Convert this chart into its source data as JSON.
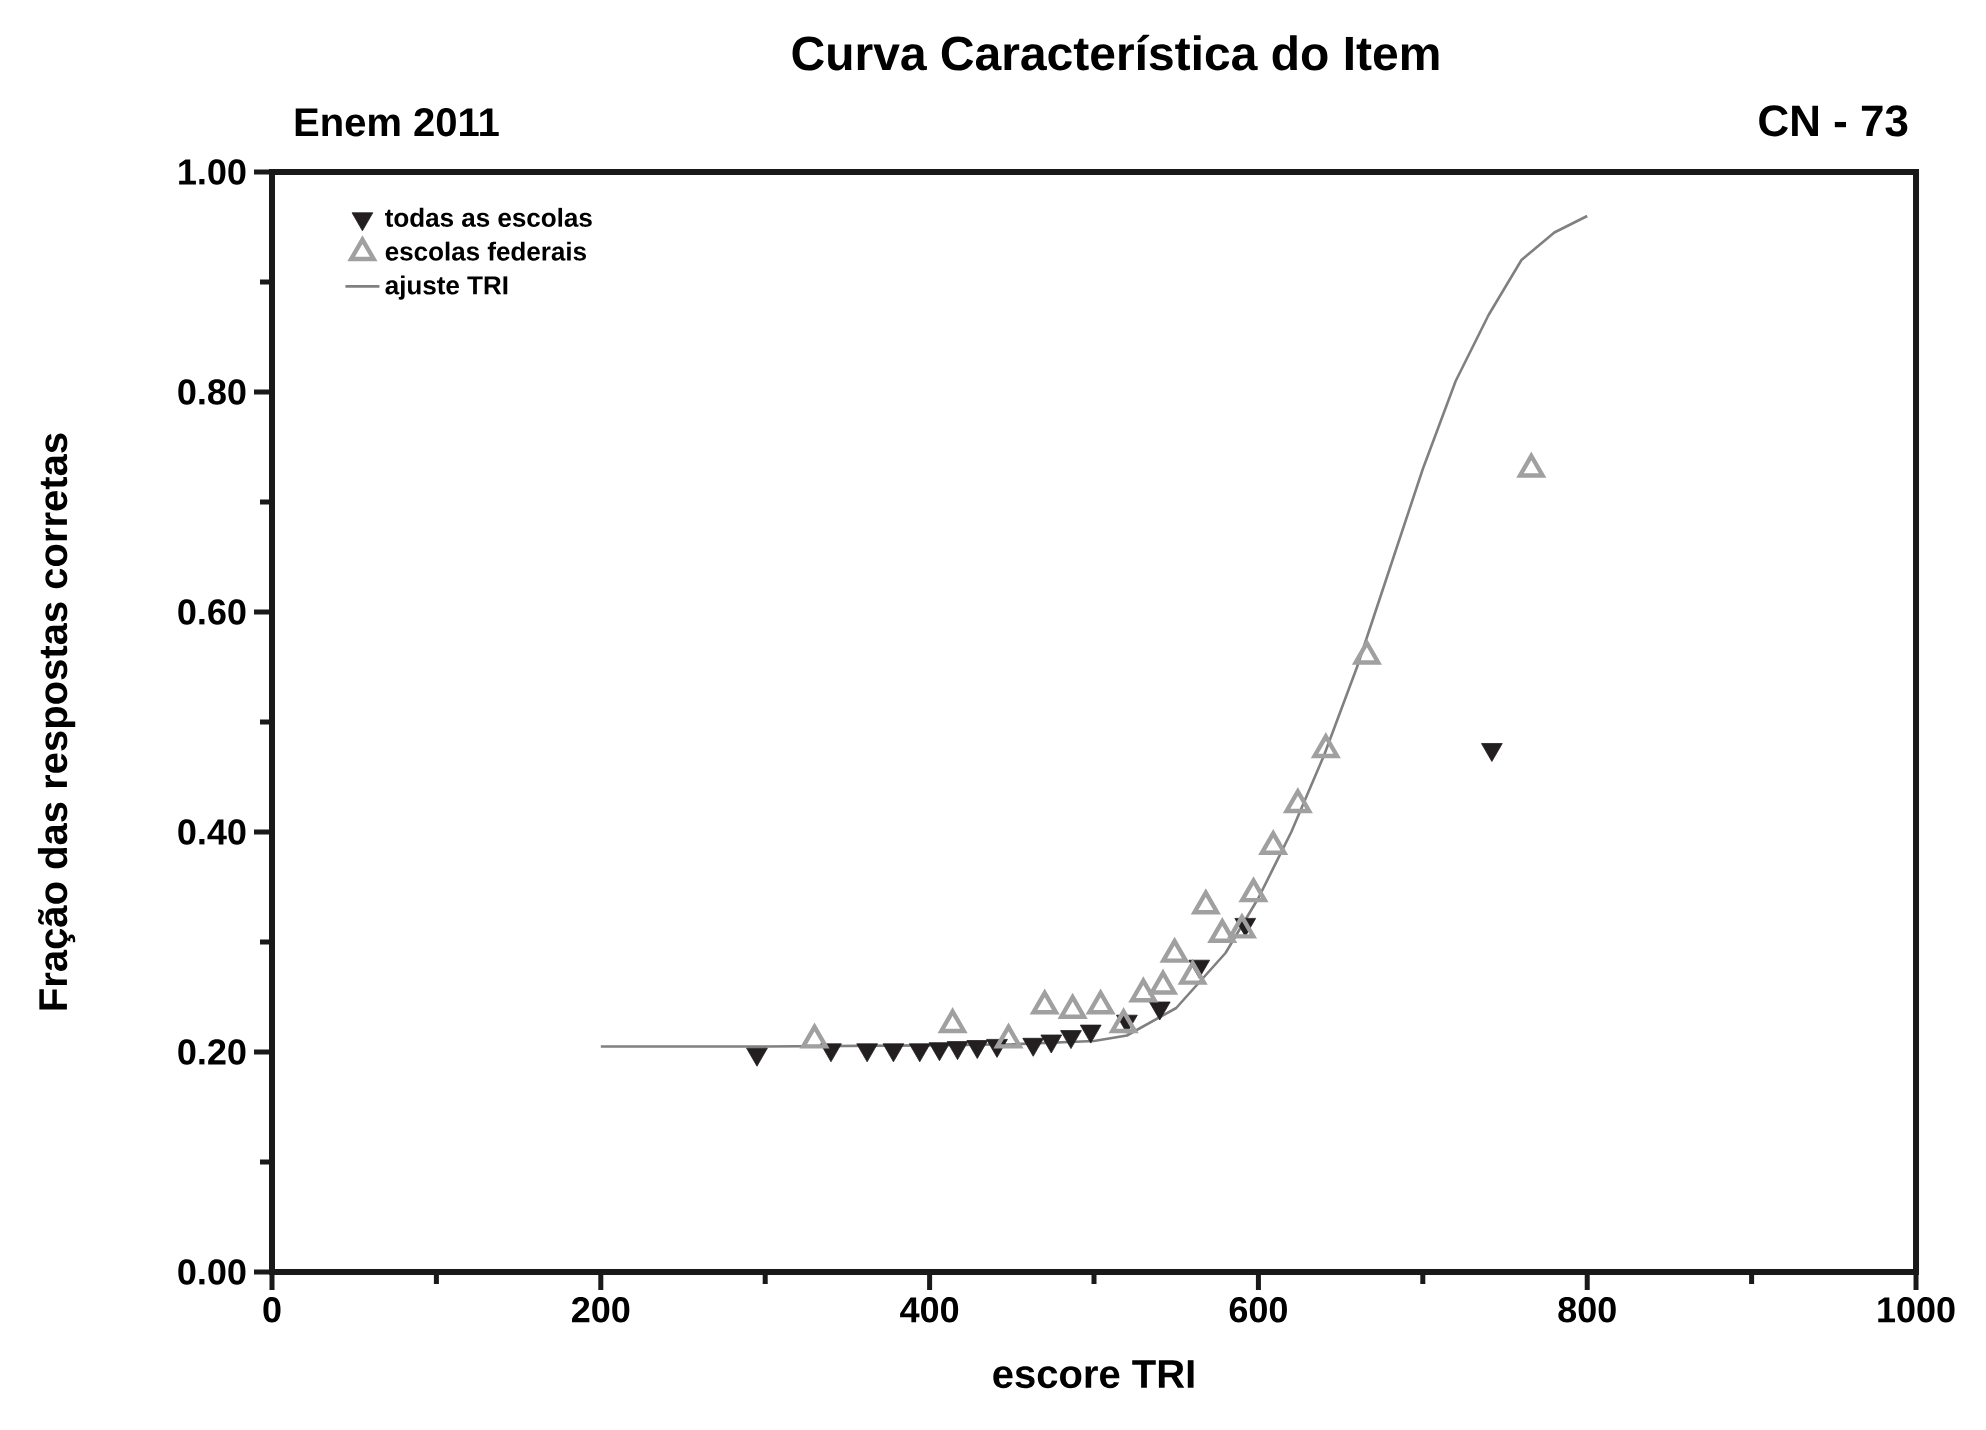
{
  "chart_data": {
    "type": "scatter",
    "title": "Curva Característica do Item",
    "annotations": [
      "Enem 2011",
      "CN - 73"
    ],
    "xlabel": "escore TRI",
    "ylabel": "Fração das respostas corretas",
    "xlim": [
      0,
      1000
    ],
    "ylim": [
      0,
      1.0
    ],
    "xticks": [
      0,
      {
        "value": 100,
        "label": null
      },
      200,
      {
        "value": 300,
        "label": null
      },
      400,
      {
        "value": 500,
        "label": null
      },
      600,
      {
        "value": 700,
        "label": null
      },
      800,
      {
        "value": 900,
        "label": null
      },
      1000
    ],
    "yticks": [
      {
        "value": 0,
        "label": "0.00"
      },
      {
        "value": 0.1,
        "label": null
      },
      {
        "value": 0.2,
        "label": "0.20"
      },
      {
        "value": 0.3,
        "label": null
      },
      {
        "value": 0.4,
        "label": "0.40"
      },
      {
        "value": 0.5,
        "label": null
      },
      {
        "value": 0.6,
        "label": "0.60"
      },
      {
        "value": 0.7,
        "label": null
      },
      {
        "value": 0.8,
        "label": "0.80"
      },
      {
        "value": 0.9,
        "label": null
      },
      {
        "value": 1.0,
        "label": "1.00"
      }
    ],
    "legend": "top left",
    "series": [
      {
        "name": "todas as escolas",
        "marker": "triangle",
        "color": "#231f20",
        "x": [
          295,
          340,
          362,
          378,
          394,
          406,
          417,
          429,
          441,
          463,
          474,
          486,
          498,
          520,
          540,
          564,
          592,
          742
        ],
        "values": [
          0.198,
          0.202,
          0.202,
          0.202,
          0.202,
          0.203,
          0.204,
          0.205,
          0.206,
          0.207,
          0.21,
          0.214,
          0.219,
          0.228,
          0.24,
          0.278,
          0.316,
          0.475
        ]
      },
      {
        "name": "escolas federais",
        "marker": "triangle",
        "color": "#a0a0a0",
        "x": [
          330,
          414,
          448,
          470,
          487,
          504,
          518,
          530,
          542,
          549,
          560,
          568,
          578,
          590,
          597,
          609,
          624,
          641,
          666,
          766
        ],
        "values": [
          0.211,
          0.225,
          0.211,
          0.242,
          0.238,
          0.242,
          0.225,
          0.253,
          0.26,
          0.289,
          0.269,
          0.333,
          0.307,
          0.311,
          0.344,
          0.387,
          0.425,
          0.475,
          0.56,
          0.73
        ]
      },
      {
        "name": "ajuste TRI",
        "type": "line",
        "marker": "none",
        "line_style": "solid",
        "color": "#808080",
        "x": [
          200,
          300,
          400,
          450,
          500,
          520,
          550,
          580,
          600,
          620,
          640,
          660,
          680,
          700,
          720,
          740,
          760,
          780,
          800
        ],
        "values": [
          0.205,
          0.205,
          0.206,
          0.207,
          0.21,
          0.215,
          0.24,
          0.29,
          0.34,
          0.4,
          0.47,
          0.55,
          0.64,
          0.73,
          0.81,
          0.87,
          0.92,
          0.945,
          0.96
        ]
      }
    ]
  }
}
